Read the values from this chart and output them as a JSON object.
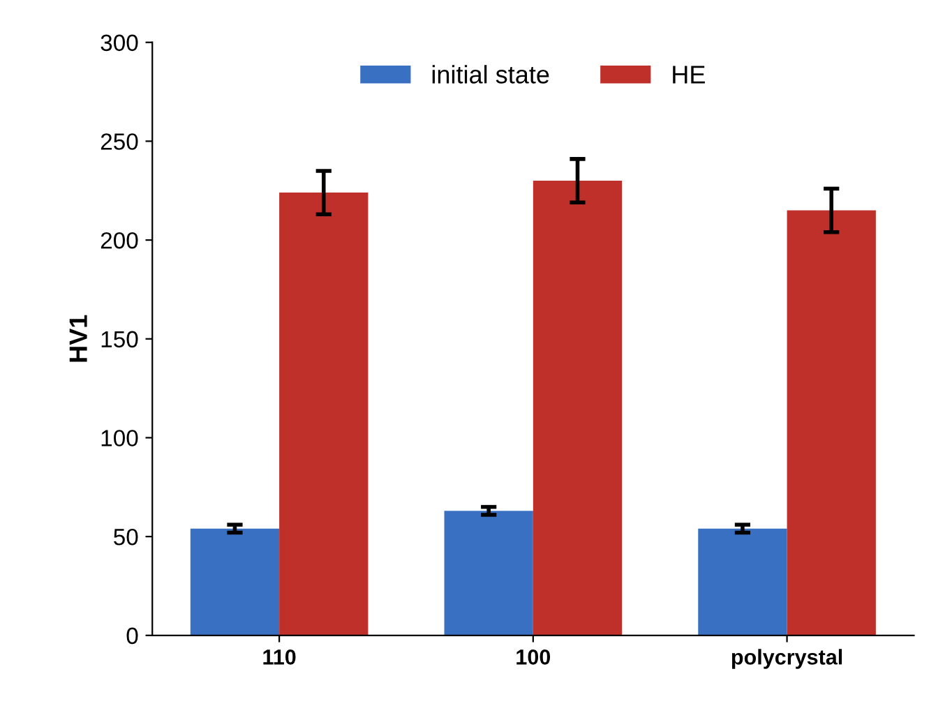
{
  "chart_data": {
    "type": "bar",
    "ylabel": "HV1",
    "categories": [
      "110",
      "100",
      "polycrystal"
    ],
    "series": [
      {
        "name": "initial state",
        "color": "#3a70c2",
        "values": [
          54,
          63,
          54
        ],
        "errors": [
          2,
          2,
          2
        ]
      },
      {
        "name": "HE",
        "color": "#c0302a",
        "values": [
          224,
          230,
          215
        ],
        "errors": [
          11,
          11,
          11
        ]
      }
    ],
    "ylim": [
      0,
      300
    ],
    "yticks": [
      0,
      50,
      100,
      150,
      200,
      250,
      300
    ],
    "grid": false,
    "legend": "top"
  }
}
